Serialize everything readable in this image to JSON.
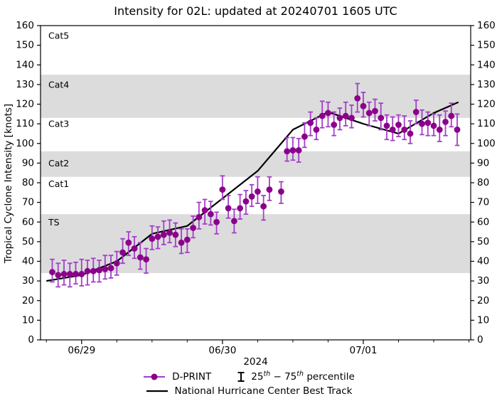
{
  "figure": {
    "title": "Intensity for 02L: updated at 20240701 1605 UTC",
    "xlabel": "2024",
    "ylabel": "Tropical Cyclone Intensity [knots]"
  },
  "legend": {
    "dprint_label": "D-PRINT",
    "percentile_parts": [
      "25",
      "th",
      " − 75",
      "th",
      " percentile"
    ],
    "best_track_label": "National Hurricane Center Best Track"
  },
  "chart_data": {
    "type": "scatter",
    "title": "Intensity for 02L: updated at 20240701 1605 UTC",
    "xlabel": "2024",
    "ylabel": "Tropical Cyclone Intensity [knots]",
    "ylim": [
      0,
      160
    ],
    "ytick_step": 10,
    "grid": false,
    "legend_position": "below",
    "x_domain_hours": [
      0,
      73.3
    ],
    "xticks": [
      {
        "label": "06/29",
        "h": 7
      },
      {
        "label": "06/30",
        "h": 31
      },
      {
        "label": "07/01",
        "h": 55
      }
    ],
    "x_minor_tick_start": 1,
    "x_minor_tick_step": 6,
    "bands": [
      {
        "label": "TS",
        "from": 34,
        "to": 64,
        "shaded": true,
        "label_at": 60
      },
      {
        "label": "Cat1",
        "from": 64,
        "to": 83,
        "shaded": false,
        "label_at": 79.5
      },
      {
        "label": "Cat2",
        "from": 83,
        "to": 96,
        "shaded": true,
        "label_at": 90
      },
      {
        "label": "Cat3",
        "from": 96,
        "to": 113,
        "shaded": false,
        "label_at": 110
      },
      {
        "label": "Cat4",
        "from": 113,
        "to": 135,
        "shaded": true,
        "label_at": 130
      },
      {
        "label": "Cat5",
        "from": 135,
        "to": 160,
        "shaded": false,
        "label_at": 155
      }
    ],
    "colors": {
      "marker": "#8b008b",
      "errorbar": "#a33fc8",
      "best_track": "#000000",
      "band": "#dcdcdc",
      "text": "#000000"
    },
    "series": {
      "dprint": {
        "name": "D-PRINT",
        "units": "knots",
        "start_hour": 2,
        "interval_hours": 1,
        "points_value_p25_p75": [
          [
            34.5,
            29.5,
            41
          ],
          [
            33,
            27,
            39
          ],
          [
            33.5,
            28,
            40.5
          ],
          [
            33.5,
            27,
            39
          ],
          [
            33.5,
            28.5,
            39.5
          ],
          [
            33.5,
            27.5,
            41
          ],
          [
            35,
            28,
            40.5
          ],
          [
            35,
            29.5,
            41.5
          ],
          [
            35.5,
            29.5,
            40.5
          ],
          [
            36,
            31,
            43
          ],
          [
            36.5,
            31.5,
            43
          ],
          [
            39,
            33,
            45
          ],
          [
            44.5,
            39,
            51.5
          ],
          [
            49.5,
            43,
            55
          ],
          [
            46.5,
            41.5,
            52.5
          ],
          [
            42,
            36,
            49.5
          ],
          [
            41,
            34,
            46.5
          ],
          [
            51.5,
            46,
            58
          ],
          [
            52.5,
            46.5,
            57.5
          ],
          [
            53.5,
            48.5,
            60.5
          ],
          [
            54.5,
            49.5,
            61
          ],
          [
            53.5,
            47.5,
            59.5
          ],
          [
            49.5,
            44,
            56.5
          ],
          [
            51,
            44.5,
            56.5
          ],
          [
            57,
            52,
            63
          ],
          [
            62.5,
            56.5,
            70
          ],
          [
            66,
            59,
            71.5
          ],
          [
            64,
            58.5,
            70.5
          ],
          [
            60,
            54,
            65
          ],
          [
            76.5,
            71.5,
            83.5
          ],
          [
            67,
            62,
            73.5
          ],
          [
            60.5,
            54.5,
            66.5
          ],
          [
            67,
            61.5,
            74
          ],
          [
            70.5,
            64,
            76
          ],
          [
            73,
            68,
            79
          ],
          [
            75.5,
            69.5,
            83
          ],
          [
            68,
            61,
            73.5
          ],
          [
            76.5,
            71,
            83
          ],
          null,
          [
            75.5,
            69.5,
            80.5
          ],
          [
            96,
            91,
            103
          ],
          [
            96.5,
            91.5,
            103
          ],
          [
            96.5,
            90.5,
            102.5
          ],
          [
            103.5,
            98,
            110.5
          ],
          [
            110.5,
            104,
            116
          ],
          [
            107,
            102,
            113
          ],
          [
            114,
            108,
            121.5
          ],
          [
            115.5,
            108.5,
            121
          ],
          [
            109.5,
            104,
            116
          ],
          [
            113,
            107,
            118
          ],
          [
            114,
            109,
            121
          ],
          [
            113,
            108,
            119.5
          ],
          [
            123,
            116,
            130.5
          ],
          [
            119,
            113.5,
            126
          ],
          [
            115.5,
            109,
            121
          ],
          [
            116.5,
            111.5,
            122.5
          ],
          [
            113,
            107,
            120.5
          ],
          [
            109,
            102,
            114.5
          ],
          [
            107,
            101.5,
            113.5
          ],
          [
            109.5,
            103.5,
            114.5
          ],
          [
            107,
            102,
            114
          ],
          [
            105,
            100,
            111.5
          ],
          [
            116,
            110,
            122
          ],
          [
            110,
            104.5,
            117
          ],
          [
            110.5,
            104,
            116
          ],
          [
            109,
            104,
            115
          ],
          [
            107,
            101,
            114.5
          ],
          [
            111,
            104,
            116.5
          ],
          [
            114,
            108.5,
            120.5
          ],
          [
            107,
            99,
            115
          ]
        ]
      },
      "best_track": {
        "name": "National Hurricane Center Best Track",
        "units": "knots",
        "h": [
          1,
          7,
          13,
          19,
          25,
          31,
          37,
          43,
          49,
          55,
          61,
          67,
          71.2
        ],
        "v": [
          30,
          33,
          40,
          54,
          58,
          72,
          86,
          107,
          116,
          110,
          105,
          115.5,
          121
        ]
      }
    }
  }
}
